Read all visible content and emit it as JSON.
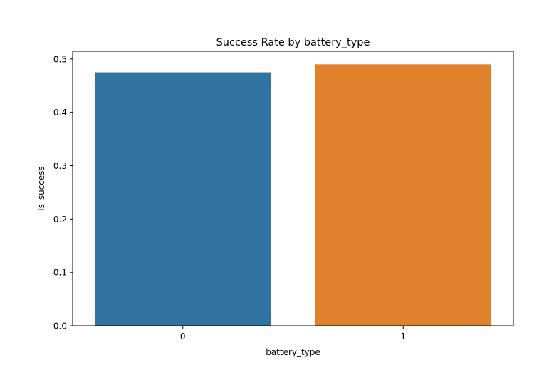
{
  "chart_data": {
    "type": "bar",
    "title": "Success Rate by battery_type",
    "xlabel": "battery_type",
    "ylabel": "is_success",
    "categories": [
      "0",
      "1"
    ],
    "values": [
      0.475,
      0.49
    ],
    "colors": [
      "#3274a1",
      "#e1812c"
    ],
    "ylim": [
      0,
      0.5145
    ],
    "yticks": [
      0.0,
      0.1,
      0.2,
      0.3,
      0.4,
      0.5
    ],
    "ytick_labels": [
      "0.0",
      "0.1",
      "0.2",
      "0.3",
      "0.4",
      "0.5"
    ],
    "grid": false,
    "legend": "none"
  }
}
